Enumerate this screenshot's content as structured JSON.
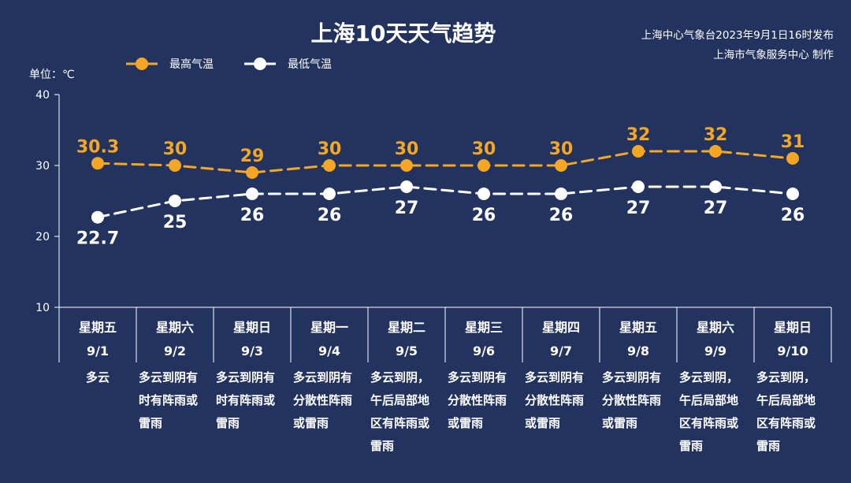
{
  "title": "上海10天天气趋势",
  "source": [
    "上海中心气象台2023年9月1日16时发布",
    "上海市气象服务中心 制作"
  ],
  "unit_label": "单位：℃",
  "colors": {
    "background": "#22335f",
    "high": "#f5a623",
    "low": "#ffffff"
  },
  "chart_data": {
    "type": "line",
    "ylim": [
      10,
      40
    ],
    "yticks": [
      10,
      20,
      30,
      40
    ],
    "grid": false,
    "legend_position": "top-left",
    "categories": [
      "9/1",
      "9/2",
      "9/3",
      "9/4",
      "9/5",
      "9/6",
      "9/7",
      "9/8",
      "9/9",
      "9/10"
    ],
    "weekdays": [
      "星期五",
      "星期六",
      "星期日",
      "星期一",
      "星期二",
      "星期三",
      "星期四",
      "星期五",
      "星期六",
      "星期日"
    ],
    "weather": [
      [
        "多云"
      ],
      [
        "多云到阴有",
        "时有阵雨或",
        "雷雨"
      ],
      [
        "多云到阴有",
        "时有阵雨或",
        "雷雨"
      ],
      [
        "多云到阴有",
        "分散性阵雨",
        "或雷雨"
      ],
      [
        "多云到阴，",
        "午后局部地",
        "区有阵雨或",
        "雷雨"
      ],
      [
        "多云到阴有",
        "分散性阵雨",
        "或雷雨"
      ],
      [
        "多云到阴有",
        "分散性阵雨",
        "或雷雨"
      ],
      [
        "多云到阴有",
        "分散性阵雨",
        "或雷雨"
      ],
      [
        "多云到阴，",
        "午后局部地",
        "区有阵雨或",
        "雷雨"
      ],
      [
        "多云到阴，",
        "午后局部地",
        "区有阵雨或",
        "雷雨"
      ]
    ],
    "series": [
      {
        "name": "最高气温",
        "values": [
          30.3,
          30,
          29,
          30,
          30,
          30,
          30,
          32,
          32,
          31
        ]
      },
      {
        "name": "最低气温",
        "values": [
          22.7,
          25,
          26,
          26,
          27,
          26,
          26,
          27,
          27,
          26
        ]
      }
    ]
  }
}
